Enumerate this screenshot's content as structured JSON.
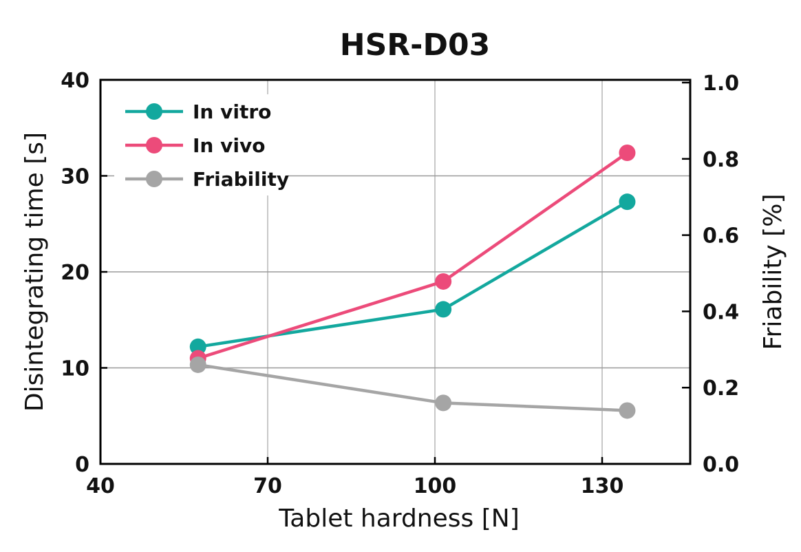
{
  "chart_data": {
    "type": "line",
    "title": "HSR-D03",
    "xlabel": "Tablet hardness [N]",
    "ylabel": "Disintegrating time [s]",
    "y2label": "Friability [%]",
    "xlim": [
      40,
      150
    ],
    "ylim": [
      0,
      40
    ],
    "y2lim": [
      0.0,
      1.0
    ],
    "xticks": [
      "40",
      "70",
      "100",
      "130"
    ],
    "yticks": [
      "0",
      "10",
      "20",
      "30",
      "40"
    ],
    "y2ticks": [
      "0.0",
      "0.2",
      "0.4",
      "0.6",
      "0.8",
      "1.0"
    ],
    "grid": true,
    "legend_position": "top-left",
    "series": [
      {
        "name": "In vitro",
        "axis": "left",
        "color": "#13a89e",
        "points": [
          [
            57.5,
            12.2
          ],
          [
            101.5,
            16.1
          ],
          [
            134.5,
            27.3
          ]
        ]
      },
      {
        "name": "In vivo",
        "axis": "left",
        "color": "#ec4b7a",
        "points": [
          [
            57.5,
            11.0
          ],
          [
            101.5,
            19.0
          ],
          [
            134.5,
            32.4
          ]
        ]
      },
      {
        "name": "Friability",
        "axis": "right",
        "color": "#a5a5a5",
        "points": [
          [
            57.5,
            0.26
          ],
          [
            101.5,
            0.16
          ],
          [
            134.5,
            0.14
          ]
        ]
      }
    ]
  }
}
